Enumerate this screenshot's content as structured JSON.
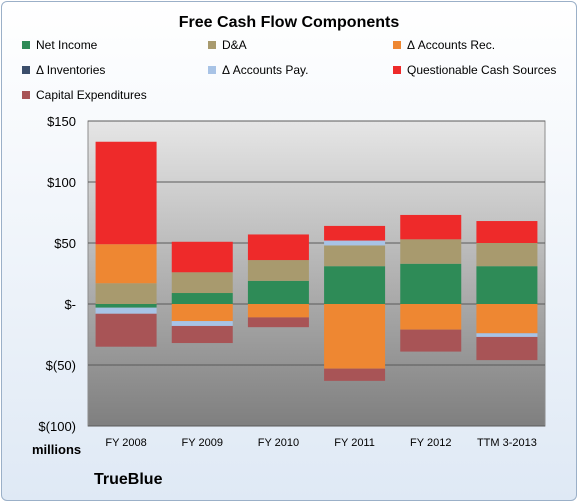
{
  "chart_data": {
    "type": "bar",
    "stacked": true,
    "title": "Free Cash Flow Components",
    "categories": [
      "FY 2008",
      "FY 2009",
      "FY 2010",
      "FY 2011",
      "FY 2012",
      "TTM 3-2013"
    ],
    "y_ticks": [
      "$150",
      "$100",
      "$50",
      "$-",
      "$(50)",
      "$(100)"
    ],
    "y_tick_values": [
      150,
      100,
      50,
      0,
      -50,
      -100
    ],
    "ylim": [
      -100,
      150
    ],
    "unit_label": "millions",
    "grid": true,
    "legend_position": "top",
    "series": [
      {
        "name": "Net Income",
        "color": "#2e8b57",
        "values": [
          -3,
          9,
          19,
          31,
          33,
          31
        ]
      },
      {
        "name": "D&A",
        "color": "#a89a6e",
        "values": [
          17,
          17,
          17,
          17,
          20,
          19
        ]
      },
      {
        "name": "Δ Accounts Rec.",
        "color": "#ee8732",
        "values": [
          32,
          -14,
          -11,
          -53,
          -21,
          -24
        ]
      },
      {
        "name": "Δ Inventories",
        "color": "#3b4e6b",
        "values": [
          0,
          0,
          0,
          0,
          0,
          0
        ]
      },
      {
        "name": "Δ Accounts Pay.",
        "color": "#a8c3e6",
        "values": [
          -5,
          -4,
          0,
          4,
          0,
          -3
        ]
      },
      {
        "name": "Questionable Cash Sources",
        "color": "#ee2a2a",
        "values": [
          84,
          25,
          21,
          12,
          20,
          18
        ]
      },
      {
        "name": "Capital Expenditures",
        "color": "#a85456",
        "values": [
          -27,
          -14,
          -8,
          -10,
          -18,
          -19
        ]
      }
    ]
  },
  "brand": "TrueBlue"
}
